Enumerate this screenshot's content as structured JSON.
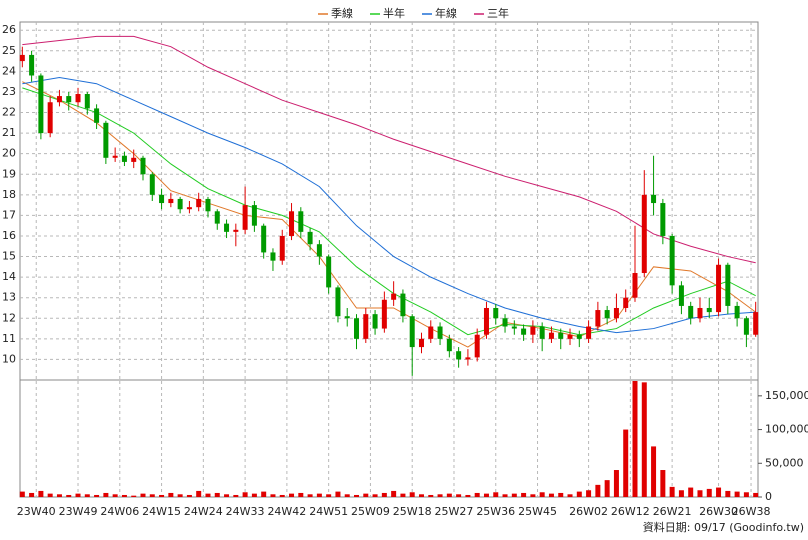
{
  "chart_data": [
    {
      "type": "candlestick",
      "x": [
        0,
        2,
        4,
        6,
        8,
        10,
        12,
        14,
        16,
        18,
        20,
        22,
        24,
        26,
        28,
        30,
        32,
        34,
        36,
        38,
        40,
        42,
        44,
        46,
        48,
        50,
        52,
        54,
        56,
        58,
        60,
        62,
        64,
        66,
        68,
        70,
        72,
        74,
        76,
        78,
        80,
        82,
        84,
        86,
        88,
        90,
        92,
        94,
        96,
        98,
        100,
        102,
        104,
        106,
        108,
        110,
        112,
        114,
        116,
        118,
        120,
        122,
        124,
        126,
        128,
        130,
        132,
        134,
        136,
        138,
        140,
        142,
        144,
        146,
        148,
        150,
        152,
        154,
        156,
        158
      ],
      "open": [
        24.5,
        24.8,
        23.8,
        21.0,
        22.5,
        22.8,
        22.5,
        22.9,
        22.2,
        21.5,
        19.8,
        19.9,
        19.6,
        19.8,
        19.0,
        18.0,
        17.6,
        17.8,
        17.3,
        17.4,
        17.8,
        17.2,
        16.6,
        16.2,
        16.3,
        17.5,
        16.5,
        15.2,
        14.8,
        16.0,
        17.2,
        16.2,
        15.6,
        15.0,
        13.5,
        12.1,
        12.0,
        11.0,
        12.2,
        11.5,
        12.9,
        13.2,
        12.1,
        10.6,
        11.0,
        11.6,
        11.0,
        10.4,
        10.0,
        10.1,
        11.2,
        12.5,
        12.0,
        11.6,
        11.5,
        11.2,
        11.6,
        11.0,
        11.3,
        11.0,
        11.2,
        11.0,
        11.6,
        12.4,
        12.0,
        12.5,
        13.0,
        14.2,
        18.0,
        17.6,
        16.0,
        13.6,
        12.6,
        12.0,
        12.5,
        12.3,
        14.6,
        12.6,
        12.0,
        11.2
      ],
      "high": [
        25.2,
        25.0,
        23.9,
        22.8,
        23.1,
        23.0,
        23.2,
        23.0,
        22.4,
        21.6,
        20.3,
        20.1,
        20.2,
        19.9,
        19.1,
        18.3,
        18.1,
        17.9,
        17.7,
        18.1,
        17.9,
        17.3,
        16.8,
        16.6,
        18.4,
        17.7,
        16.6,
        15.4,
        16.3,
        17.6,
        17.4,
        16.4,
        15.8,
        15.1,
        13.6,
        12.5,
        12.2,
        12.5,
        12.4,
        13.3,
        13.8,
        13.4,
        12.2,
        11.3,
        11.9,
        11.8,
        11.2,
        10.6,
        10.5,
        11.5,
        12.8,
        12.7,
        12.2,
        11.9,
        11.7,
        11.9,
        11.8,
        11.6,
        11.5,
        11.5,
        11.4,
        11.9,
        12.8,
        12.6,
        13.2,
        13.4,
        16.5,
        19.2,
        19.9,
        17.8,
        16.1,
        13.8,
        12.8,
        13.0,
        13.0,
        14.9,
        14.7,
        12.8,
        12.1,
        12.8
      ],
      "low": [
        24.2,
        23.5,
        20.7,
        20.8,
        22.3,
        22.1,
        22.3,
        21.9,
        21.2,
        19.5,
        19.6,
        19.4,
        19.3,
        18.7,
        17.7,
        17.3,
        17.4,
        17.1,
        17.1,
        17.2,
        16.9,
        16.3,
        15.9,
        15.5,
        16.1,
        16.2,
        14.9,
        14.3,
        14.6,
        15.8,
        15.9,
        15.3,
        14.6,
        13.2,
        11.8,
        11.6,
        10.5,
        10.8,
        11.2,
        11.3,
        12.6,
        11.8,
        9.2,
        10.3,
        10.8,
        10.7,
        10.1,
        9.6,
        9.7,
        9.9,
        11.0,
        11.7,
        11.3,
        11.2,
        10.9,
        10.8,
        10.4,
        10.8,
        10.5,
        10.7,
        10.6,
        10.8,
        11.4,
        11.7,
        11.8,
        12.3,
        12.8,
        14.0,
        17.0,
        15.6,
        13.2,
        12.2,
        11.7,
        11.8,
        12.0,
        12.1,
        12.2,
        11.6,
        10.6,
        11.1
      ],
      "close": [
        24.8,
        23.8,
        21.0,
        22.5,
        22.8,
        22.5,
        22.9,
        22.2,
        21.5,
        19.8,
        19.9,
        19.6,
        19.8,
        19.0,
        18.0,
        17.6,
        17.8,
        17.3,
        17.4,
        17.8,
        17.2,
        16.6,
        16.2,
        16.3,
        17.5,
        16.5,
        15.2,
        14.8,
        16.0,
        17.2,
        16.2,
        15.6,
        15.0,
        13.5,
        12.1,
        12.0,
        11.0,
        12.2,
        11.5,
        12.9,
        13.2,
        12.1,
        10.6,
        11.0,
        11.6,
        11.0,
        10.4,
        10.0,
        10.1,
        11.2,
        12.5,
        12.0,
        11.6,
        11.5,
        11.2,
        11.6,
        11.0,
        11.3,
        11.0,
        11.2,
        11.0,
        11.6,
        12.4,
        12.0,
        12.5,
        13.0,
        14.2,
        18.0,
        17.6,
        16.0,
        13.6,
        12.6,
        12.0,
        12.5,
        12.3,
        14.6,
        12.6,
        12.0,
        11.2,
        12.3
      ],
      "up_color": "#e00000",
      "down_color": "#009a00",
      "series": [
        {
          "name": "季線",
          "color": "#e0782a",
          "x": [
            0,
            8,
            16,
            24,
            32,
            40,
            48,
            56,
            64,
            72,
            80,
            88,
            96,
            104,
            112,
            120,
            128,
            136,
            144,
            152,
            158
          ],
          "values": [
            23.5,
            22.6,
            21.5,
            20.0,
            18.2,
            17.6,
            17.0,
            16.8,
            15.0,
            12.5,
            12.5,
            11.5,
            10.6,
            11.8,
            11.5,
            11.1,
            12.0,
            14.5,
            14.3,
            13.3,
            12.3
          ]
        },
        {
          "name": "半年",
          "color": "#22cc22",
          "x": [
            0,
            8,
            16,
            24,
            32,
            40,
            48,
            56,
            64,
            72,
            80,
            88,
            96,
            104,
            112,
            120,
            128,
            136,
            144,
            152,
            158
          ],
          "values": [
            23.2,
            22.6,
            22.0,
            21.0,
            19.5,
            18.3,
            17.5,
            17.0,
            16.2,
            14.5,
            13.2,
            12.3,
            11.2,
            11.7,
            11.6,
            11.2,
            11.5,
            12.5,
            13.2,
            13.8,
            13.1
          ]
        },
        {
          "name": "年線",
          "color": "#1f6fd6",
          "x": [
            0,
            8,
            16,
            24,
            32,
            40,
            48,
            56,
            64,
            72,
            80,
            88,
            96,
            104,
            112,
            120,
            128,
            136,
            144,
            152,
            158
          ],
          "values": [
            23.4,
            23.7,
            23.4,
            22.6,
            21.8,
            21.0,
            20.3,
            19.5,
            18.4,
            16.5,
            15.0,
            14.0,
            13.2,
            12.5,
            12.0,
            11.6,
            11.3,
            11.5,
            12.0,
            12.2,
            12.3
          ]
        },
        {
          "name": "三年",
          "color": "#cc1f6f",
          "x": [
            0,
            8,
            16,
            24,
            32,
            40,
            48,
            56,
            64,
            72,
            80,
            88,
            96,
            104,
            112,
            120,
            128,
            136,
            144,
            152,
            158
          ],
          "values": [
            25.3,
            25.5,
            25.7,
            25.7,
            25.2,
            24.2,
            23.4,
            22.6,
            22.0,
            21.4,
            20.7,
            20.1,
            19.5,
            18.9,
            18.4,
            17.9,
            17.2,
            16.1,
            15.5,
            15.0,
            14.7
          ]
        }
      ],
      "xlim": [
        -0.5,
        158.5
      ],
      "xticks": [
        {
          "value": 3,
          "label": "23W40"
        },
        {
          "value": 12,
          "label": "23W49"
        },
        {
          "value": 21,
          "label": "24W06"
        },
        {
          "value": 30,
          "label": "24W15"
        },
        {
          "value": 39,
          "label": "24W24"
        },
        {
          "value": 48,
          "label": "24W33"
        },
        {
          "value": 57,
          "label": "24W42"
        },
        {
          "value": 66,
          "label": "24W51"
        },
        {
          "value": 75,
          "label": "25W09"
        },
        {
          "value": 84,
          "label": "25W18"
        },
        {
          "value": 93,
          "label": "25W27"
        },
        {
          "value": 102,
          "label": "25W36"
        },
        {
          "value": 111,
          "label": "25W45"
        },
        {
          "value": 122,
          "label": "26W02"
        },
        {
          "value": 131,
          "label": "26W12"
        },
        {
          "value": 140,
          "label": "26W21"
        },
        {
          "value": 150,
          "label": "26W30"
        },
        {
          "value": 157,
          "label": "26W38"
        }
      ],
      "ylim": [
        9,
        26.4
      ],
      "yticks": [
        10,
        11,
        12,
        13,
        14,
        15,
        16,
        17,
        18,
        19,
        20,
        21,
        22,
        23,
        24,
        25,
        26
      ],
      "grid": true
    },
    {
      "type": "bar",
      "x": [
        0,
        2,
        4,
        6,
        8,
        10,
        12,
        14,
        16,
        18,
        20,
        22,
        24,
        26,
        28,
        30,
        32,
        34,
        36,
        38,
        40,
        42,
        44,
        46,
        48,
        50,
        52,
        54,
        56,
        58,
        60,
        62,
        64,
        66,
        68,
        70,
        72,
        74,
        76,
        78,
        80,
        82,
        84,
        86,
        88,
        90,
        92,
        94,
        96,
        98,
        100,
        102,
        104,
        106,
        108,
        110,
        112,
        114,
        116,
        118,
        120,
        122,
        124,
        126,
        128,
        130,
        132,
        134,
        136,
        138,
        140,
        142,
        144,
        146,
        148,
        150,
        152,
        154,
        156,
        158
      ],
      "values": [
        8000,
        6000,
        9000,
        5000,
        4000,
        3000,
        5000,
        4000,
        3000,
        6000,
        4000,
        3000,
        2000,
        5000,
        4000,
        3000,
        6000,
        4000,
        3000,
        9000,
        5000,
        6000,
        4000,
        3000,
        7000,
        5000,
        8000,
        4000,
        3000,
        5000,
        6000,
        4000,
        5000,
        4000,
        8000,
        4000,
        3000,
        5000,
        4000,
        6000,
        9000,
        5000,
        7000,
        4000,
        3000,
        4000,
        5000,
        4000,
        3000,
        6000,
        5000,
        7000,
        4000,
        5000,
        6000,
        4000,
        7000,
        5000,
        6000,
        4000,
        8000,
        10000,
        18000,
        25000,
        40000,
        100000,
        172000,
        170000,
        75000,
        40000,
        15000,
        10000,
        14000,
        10000,
        12000,
        14000,
        9000,
        8000,
        7000,
        6000
      ],
      "color": "#e00000",
      "ylim": [
        0,
        172000
      ],
      "yticks": [
        0,
        {
          "value": 50000,
          "label": "50,000"
        },
        {
          "value": 100000,
          "label": "100,000"
        },
        {
          "value": 150000,
          "label": "150,000"
        }
      ],
      "note": "資料日期: 09/17 (Goodinfo.tw)"
    }
  ]
}
